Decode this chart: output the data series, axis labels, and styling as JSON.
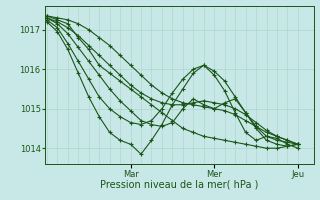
{
  "bg_color": "#c8e8e8",
  "grid_color": "#b0d8d0",
  "line_color": "#1a5518",
  "marker": "+",
  "markersize": 3,
  "linewidth": 0.8,
  "xlabel": "Pression niveau de la mer( hPa )",
  "xlabel_fontsize": 7,
  "yticks": [
    1014,
    1015,
    1016,
    1017
  ],
  "ytick_fontsize": 6,
  "xtick_fontsize": 6,
  "ylim": [
    1013.6,
    1017.6
  ],
  "xlim": [
    -0.2,
    25.5
  ],
  "day_labels": [
    "Mar",
    "Mer",
    "Jeu"
  ],
  "day_positions": [
    8,
    16,
    24
  ],
  "series": [
    [
      1017.35,
      1017.25,
      1017.15,
      1016.8,
      1016.5,
      1016.1,
      1015.9,
      1015.7,
      1015.5,
      1015.3,
      1015.1,
      1014.9,
      1014.7,
      1014.5,
      1014.4,
      1014.3,
      1014.25,
      1014.2,
      1014.15,
      1014.1,
      1014.05,
      1014.0,
      1014.0,
      1014.05,
      1014.1
    ],
    [
      1017.3,
      1017.15,
      1016.9,
      1016.55,
      1016.2,
      1015.85,
      1015.5,
      1015.2,
      1014.95,
      1014.7,
      1014.6,
      1014.55,
      1014.65,
      1015.0,
      1015.25,
      1015.1,
      1015.0,
      1015.15,
      1015.25,
      1014.9,
      1014.5,
      1014.2,
      1014.1,
      1014.05,
      1014.1
    ],
    [
      1017.25,
      1017.05,
      1016.65,
      1016.2,
      1015.75,
      1015.3,
      1015.0,
      1014.8,
      1014.65,
      1014.6,
      1014.7,
      1015.0,
      1015.4,
      1015.75,
      1016.0,
      1016.1,
      1015.95,
      1015.7,
      1015.3,
      1014.9,
      1014.55,
      1014.3,
      1014.2,
      1014.15,
      1014.1
    ],
    [
      1017.2,
      1016.95,
      1016.5,
      1015.9,
      1015.3,
      1014.8,
      1014.4,
      1014.2,
      1014.1,
      1013.85,
      1014.2,
      1014.6,
      1015.1,
      1015.5,
      1015.9,
      1016.1,
      1015.85,
      1015.45,
      1014.9,
      1014.4,
      1014.2,
      1014.3,
      1014.25,
      1014.1,
      1014.0
    ],
    [
      1017.3,
      1017.2,
      1017.05,
      1016.85,
      1016.6,
      1016.35,
      1016.1,
      1015.85,
      1015.6,
      1015.4,
      1015.25,
      1015.15,
      1015.1,
      1015.1,
      1015.15,
      1015.2,
      1015.15,
      1015.1,
      1015.0,
      1014.85,
      1014.65,
      1014.45,
      1014.3,
      1014.2,
      1014.1
    ],
    [
      1017.35,
      1017.3,
      1017.25,
      1017.15,
      1017.0,
      1016.8,
      1016.6,
      1016.35,
      1016.1,
      1015.85,
      1015.6,
      1015.4,
      1015.25,
      1015.15,
      1015.1,
      1015.05,
      1015.0,
      1014.95,
      1014.85,
      1014.7,
      1014.55,
      1014.4,
      1014.3,
      1014.2,
      1014.1
    ]
  ],
  "x_count": 25,
  "num_vlines": 25
}
